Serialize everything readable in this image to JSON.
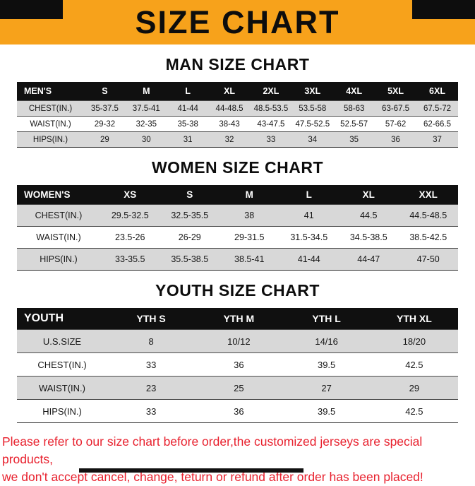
{
  "banner": {
    "title": "SIZE CHART",
    "accent_color": "#f7a21b"
  },
  "sections": [
    {
      "title": "MAN SIZE CHART",
      "table": {
        "header": [
          "MEN'S",
          "S",
          "M",
          "L",
          "XL",
          "2XL",
          "3XL",
          "4XL",
          "5XL",
          "6XL"
        ],
        "rows": [
          [
            "CHEST(IN.)",
            "35-37.5",
            "37.5-41",
            "41-44",
            "44-48.5",
            "48.5-53.5",
            "53.5-58",
            "58-63",
            "63-67.5",
            "67.5-72"
          ],
          [
            "WAIST(IN.)",
            "29-32",
            "32-35",
            "35-38",
            "38-43",
            "43-47.5",
            "47.5-52.5",
            "52.5-57",
            "57-62",
            "62-66.5"
          ],
          [
            "HIPS(IN.)",
            "29",
            "30",
            "31",
            "32",
            "33",
            "34",
            "35",
            "36",
            "37"
          ]
        ]
      }
    },
    {
      "title": "WOMEN SIZE CHART",
      "table": {
        "header": [
          "WOMEN'S",
          "XS",
          "S",
          "M",
          "L",
          "XL",
          "XXL"
        ],
        "rows": [
          [
            "CHEST(IN.)",
            "29.5-32.5",
            "32.5-35.5",
            "38",
            "41",
            "44.5",
            "44.5-48.5"
          ],
          [
            "WAIST(IN.)",
            "23.5-26",
            "26-29",
            "29-31.5",
            "31.5-34.5",
            "34.5-38.5",
            "38.5-42.5"
          ],
          [
            "HIPS(IN.)",
            "33-35.5",
            "35.5-38.5",
            "38.5-41",
            "41-44",
            "44-47",
            "47-50"
          ]
        ]
      }
    },
    {
      "title": "YOUTH SIZE CHART",
      "table": {
        "header": [
          "YOUTH",
          "YTH S",
          "YTH M",
          "YTH L",
          "YTH XL"
        ],
        "rows": [
          [
            "U.S.SIZE",
            "8",
            "10/12",
            "14/16",
            "18/20"
          ],
          [
            "CHEST(IN.)",
            "33",
            "36",
            "39.5",
            "42.5"
          ],
          [
            "WAIST(IN.)",
            "23",
            "25",
            "27",
            "29"
          ],
          [
            "HIPS(IN.)",
            "33",
            "36",
            "39.5",
            "42.5"
          ]
        ]
      }
    }
  ],
  "footer": {
    "lines": [
      "Please refer to our size chart before order,the customized jerseys are special products,",
      "we don't accept cancel, change, teturn or refund after order has been placed!"
    ],
    "text_color": "#e8212e"
  }
}
